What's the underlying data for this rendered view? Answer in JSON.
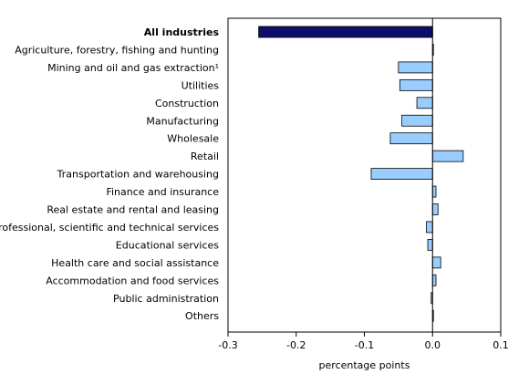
{
  "chart_data": {
    "type": "bar",
    "orientation": "horizontal",
    "categories": [
      "All industries",
      "Agriculture, forestry, fishing and hunting",
      "Mining and oil and gas extraction¹",
      "Utilities",
      "Construction",
      "Manufacturing",
      "Wholesale",
      "Retail",
      "Transportation and warehousing",
      "Finance and insurance",
      "Real estate and rental and leasing",
      "Professional, scientific and technical services",
      "Educational services",
      "Health care and social assistance",
      "Accommodation and food services",
      "Public administration",
      "Others"
    ],
    "values": [
      -0.255,
      0.001,
      -0.05,
      -0.048,
      -0.023,
      -0.045,
      -0.062,
      0.045,
      -0.09,
      0.005,
      0.008,
      -0.009,
      -0.007,
      0.012,
      0.005,
      -0.002,
      0.0
    ],
    "highlight_index": 0,
    "xlabel": "percentage points",
    "xlim": [
      -0.3,
      0.1
    ],
    "xticks": [
      -0.3,
      -0.2,
      -0.1,
      0.0,
      0.1
    ],
    "xtick_labels": [
      "-0.3",
      "-0.2",
      "-0.1",
      "0.0",
      "0.1"
    ],
    "colors": {
      "highlight": "#0d0d6b",
      "bar": "#99ccff",
      "stroke": "#000000"
    }
  }
}
